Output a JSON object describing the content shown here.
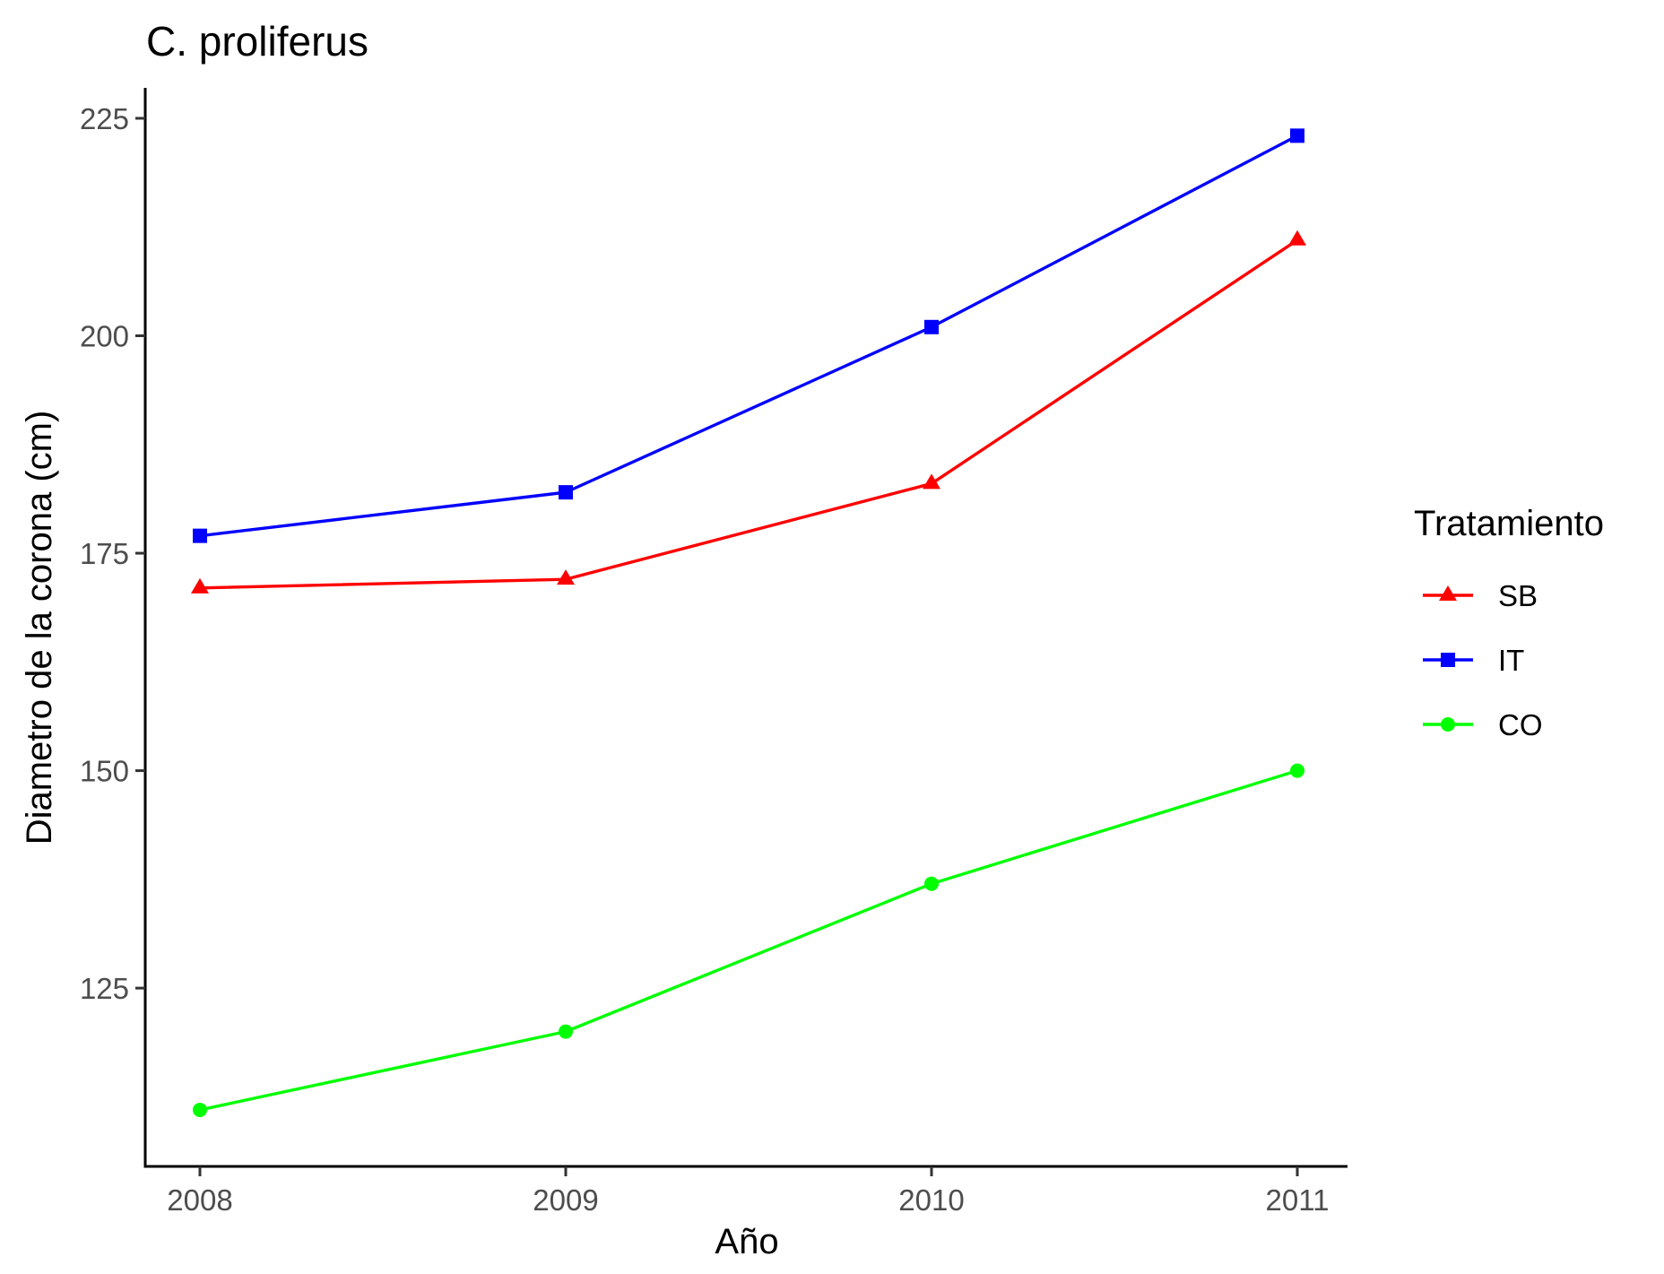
{
  "chart_data": {
    "type": "line",
    "title": "C. proliferus",
    "xlabel": "Año",
    "ylabel": "Diametro de la corona (cm)",
    "x": [
      "2008",
      "2009",
      "2010",
      "2011"
    ],
    "yticks": [
      125,
      150,
      175,
      200,
      225
    ],
    "ylim": [
      104.5,
      228.5
    ],
    "grid": false,
    "legend": {
      "title": "Tratamiento",
      "position": "right"
    },
    "series": [
      {
        "name": "SB",
        "color": "#ff0000",
        "marker": "triangle",
        "values": [
          171,
          172,
          183,
          211
        ]
      },
      {
        "name": "IT",
        "color": "#0000ff",
        "marker": "square",
        "values": [
          177,
          182,
          201,
          223
        ]
      },
      {
        "name": "CO",
        "color": "#00ff00",
        "marker": "circle",
        "values": [
          111,
          120,
          137,
          150
        ]
      }
    ]
  }
}
